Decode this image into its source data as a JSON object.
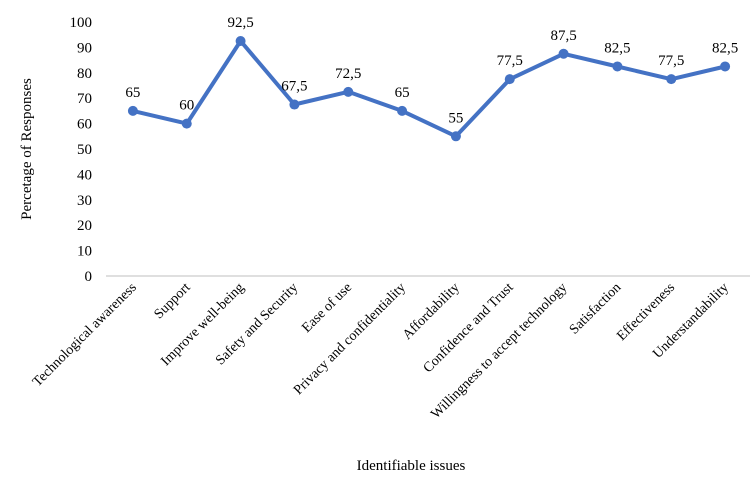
{
  "chart_data": {
    "type": "line",
    "title": "",
    "xlabel": "Identifiable issues",
    "ylabel": "Percetage of Responses",
    "ylim": [
      0,
      100
    ],
    "yticks": [
      "0",
      "10",
      "20",
      "30",
      "40",
      "50",
      "60",
      "70",
      "80",
      "90",
      "100"
    ],
    "grid": false,
    "categories": [
      "Technological awareness",
      "Support",
      "Improve well-being",
      "Safety and Security",
      "Ease of use",
      "Privacy and confidentiality",
      "Affordability",
      "Confidence and Trust",
      "Willingness to accept technology",
      "Satisfaction",
      "Effectiveness",
      "Understandability"
    ],
    "series": [
      {
        "values": [
          65,
          60,
          92.5,
          67.5,
          72.5,
          65,
          55,
          77.5,
          87.5,
          82.5,
          77.5,
          82.5
        ],
        "labels": [
          "65",
          "60",
          "92,5",
          "67,5",
          "72,5",
          "65",
          "55",
          "77,5",
          "87,5",
          "82,5",
          "77,5",
          "82,5"
        ],
        "color": "#4472C4"
      }
    ]
  }
}
